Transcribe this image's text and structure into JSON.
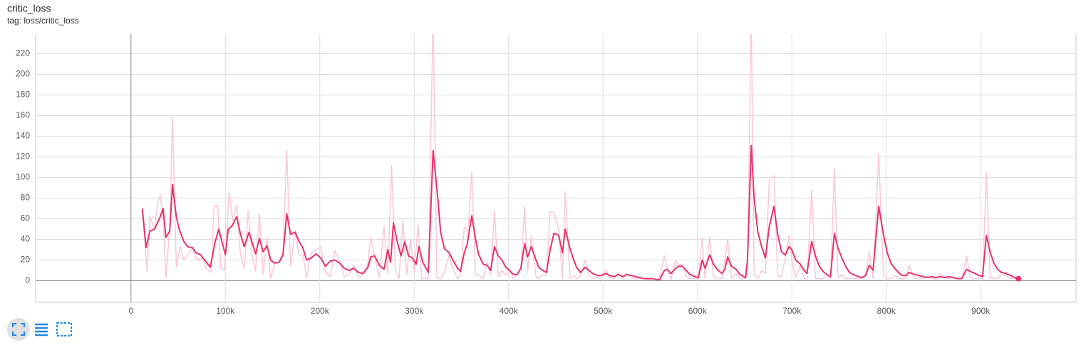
{
  "chart_data": {
    "type": "line",
    "title": "critic_loss",
    "subtitle": "tag: loss/critic_loss",
    "xlim": [
      -101000,
      1001000
    ],
    "ylim": [
      -21,
      239
    ],
    "grid": true,
    "xticks": [
      {
        "value": 0,
        "label": "0"
      },
      {
        "value": 100000,
        "label": "100k"
      },
      {
        "value": 200000,
        "label": "200k"
      },
      {
        "value": 300000,
        "label": "300k"
      },
      {
        "value": 400000,
        "label": "400k"
      },
      {
        "value": 500000,
        "label": "500k"
      },
      {
        "value": 600000,
        "label": "600k"
      },
      {
        "value": 700000,
        "label": "700k"
      },
      {
        "value": 800000,
        "label": "800k"
      },
      {
        "value": 900000,
        "label": "900k"
      }
    ],
    "yticks": [
      0,
      20,
      40,
      60,
      80,
      100,
      120,
      140,
      160,
      180,
      200,
      220
    ],
    "series": [
      {
        "color": "#f9c8d8",
        "x": [
          12000,
          17000,
          20000,
          25000,
          28000,
          31000,
          34000,
          37000,
          41000,
          44000,
          48000,
          52000,
          56000,
          60000,
          65000,
          70000,
          75000,
          80000,
          85000,
          88000,
          92000,
          95000,
          99000,
          104000,
          108000,
          112000,
          116000,
          120000,
          124000,
          128000,
          132000,
          136000,
          140000,
          144000,
          148000,
          152000,
          157000,
          161000,
          165000,
          169000,
          174000,
          178000,
          182000,
          186000,
          191000,
          196000,
          201000,
          206000,
          211000,
          216000,
          221000,
          226000,
          231000,
          236000,
          241000,
          246000,
          251000,
          254000,
          258000,
          263000,
          268000,
          272000,
          276000,
          280000,
          284000,
          288000,
          292000,
          296000,
          300000,
          304000,
          308000,
          315000,
          320000,
          324000,
          328000,
          332000,
          337000,
          341000,
          346000,
          349000,
          353000,
          357000,
          361000,
          365000,
          368000,
          373000,
          377000,
          381000,
          385000,
          389000,
          393000,
          397000,
          401000,
          405000,
          409000,
          413000,
          417000,
          420000,
          424000,
          429000,
          432000,
          436000,
          440000,
          444000,
          448000,
          453000,
          457000,
          460000,
          465000,
          469000,
          472000,
          476000,
          481000,
          485000,
          489000,
          494000,
          498000,
          503000,
          507000,
          512000,
          516000,
          521000,
          525000,
          530000,
          534000,
          539000,
          543000,
          548000,
          552000,
          557000,
          560000,
          565000,
          568000,
          572000,
          577000,
          580000,
          584000,
          588000,
          592000,
          597000,
          601000,
          605000,
          608000,
          613000,
          617000,
          622000,
          626000,
          629000,
          632000,
          636000,
          641000,
          645000,
          651000,
          653000,
          657000,
          660000,
          664000,
          668000,
          672000,
          676000,
          681000,
          685000,
          689000,
          693000,
          697000,
          700000,
          704000,
          709000,
          713000,
          716000,
          721000,
          725000,
          729000,
          733000,
          737000,
          741000,
          745000,
          749000,
          753000,
          757000,
          761000,
          765000,
          770000,
          774000,
          778000,
          782000,
          786000,
          792000,
          797000,
          801000,
          805000,
          809000,
          814000,
          817000,
          821000,
          824000,
          830000,
          835000,
          839000,
          844000,
          848000,
          853000,
          857000,
          862000,
          866000,
          871000,
          875000,
          880000,
          885000,
          889000,
          894000,
          898000,
          902000,
          906000,
          910000,
          914000,
          918000,
          922000,
          927000,
          932000,
          936000,
          940000
        ],
        "values": [
          70,
          9,
          62,
          50,
          75,
          83,
          60,
          3,
          50,
          159,
          13,
          33,
          20,
          25,
          32,
          20,
          22,
          12,
          8,
          72,
          72,
          12,
          10,
          86,
          58,
          73,
          25,
          12,
          68,
          27,
          9,
          65,
          6,
          42,
          2,
          16,
          18,
          30,
          127,
          14,
          48,
          25,
          25,
          3,
          27,
          30,
          33,
          8,
          4,
          29,
          20,
          4,
          6,
          15,
          3,
          7,
          17,
          42,
          24,
          3,
          53,
          7,
          112,
          10,
          2,
          58,
          6,
          40,
          8,
          54,
          2,
          2,
          260,
          3,
          2,
          8,
          25,
          11,
          2,
          5,
          52,
          48,
          106,
          5,
          6,
          2,
          18,
          6,
          68,
          4,
          10,
          5,
          10,
          2,
          6,
          12,
          72,
          8,
          44,
          4,
          2,
          6,
          5,
          67,
          66,
          50,
          2,
          86,
          2,
          5,
          2,
          4,
          20,
          4,
          2,
          3,
          2,
          10,
          3,
          2,
          8,
          2,
          7,
          3,
          2,
          2,
          2,
          1,
          2,
          1,
          3,
          24,
          12,
          1,
          20,
          15,
          16,
          5,
          2,
          2,
          2,
          42,
          2,
          42,
          4,
          2,
          2,
          20,
          40,
          2,
          7,
          2,
          2,
          8,
          260,
          5,
          2,
          10,
          7,
          97,
          102,
          4,
          4,
          22,
          44,
          20,
          3,
          14,
          2,
          2,
          88,
          2,
          2,
          2,
          4,
          2,
          109,
          3,
          6,
          2,
          2,
          2,
          2,
          2,
          5,
          28,
          2,
          123,
          6,
          2,
          2,
          5,
          2,
          2,
          3,
          15,
          2,
          3,
          2,
          4,
          2,
          2,
          7,
          3,
          2,
          3,
          2,
          2,
          24,
          3,
          2,
          2,
          2,
          105,
          3,
          2,
          2,
          6,
          5,
          2,
          2,
          2
        ]
      },
      {
        "color": "#e8336d",
        "x": [
          12000,
          16000,
          20000,
          25000,
          31000,
          34000,
          37000,
          41000,
          44000,
          48000,
          51000,
          56000,
          60000,
          65000,
          69000,
          74000,
          78000,
          84000,
          89000,
          93000,
          100000,
          103000,
          107000,
          112000,
          116000,
          120000,
          125000,
          128000,
          132000,
          136000,
          140000,
          144000,
          148000,
          152000,
          157000,
          161000,
          165000,
          169000,
          174000,
          178000,
          182000,
          186000,
          191000,
          196000,
          201000,
          206000,
          211000,
          216000,
          221000,
          226000,
          231000,
          236000,
          241000,
          246000,
          251000,
          254000,
          258000,
          263000,
          268000,
          272000,
          275000,
          278000,
          282000,
          286000,
          290000,
          294000,
          298000,
          302000,
          305000,
          309000,
          315000,
          320000,
          325000,
          328000,
          332000,
          337000,
          341000,
          346000,
          349000,
          353000,
          356000,
          361000,
          365000,
          368000,
          373000,
          377000,
          381000,
          385000,
          389000,
          393000,
          397000,
          401000,
          405000,
          409000,
          413000,
          417000,
          420000,
          424000,
          429000,
          432000,
          436000,
          440000,
          444000,
          448000,
          453000,
          457000,
          460000,
          465000,
          469000,
          472000,
          476000,
          481000,
          485000,
          489000,
          494000,
          498000,
          503000,
          507000,
          512000,
          516000,
          521000,
          525000,
          530000,
          534000,
          539000,
          543000,
          548000,
          552000,
          557000,
          560000,
          565000,
          568000,
          572000,
          577000,
          580000,
          584000,
          588000,
          592000,
          597000,
          601000,
          605000,
          608000,
          613000,
          617000,
          622000,
          626000,
          629000,
          632000,
          636000,
          641000,
          645000,
          651000,
          653000,
          657000,
          660000,
          664000,
          668000,
          672000,
          676000,
          681000,
          685000,
          689000,
          693000,
          697000,
          700000,
          704000,
          709000,
          713000,
          716000,
          721000,
          725000,
          729000,
          733000,
          737000,
          741000,
          745000,
          749000,
          753000,
          757000,
          761000,
          765000,
          770000,
          774000,
          778000,
          782000,
          786000,
          792000,
          797000,
          801000,
          805000,
          809000,
          814000,
          817000,
          821000,
          824000,
          830000,
          835000,
          839000,
          844000,
          848000,
          853000,
          857000,
          862000,
          866000,
          871000,
          875000,
          880000,
          885000,
          889000,
          894000,
          898000,
          902000,
          906000,
          910000,
          914000,
          918000,
          922000,
          927000,
          932000,
          936000,
          940000
        ],
        "values": [
          70,
          32,
          48,
          50,
          62,
          70,
          42,
          48,
          93,
          62,
          50,
          38,
          33,
          32,
          27,
          25,
          20,
          13,
          37,
          50,
          25,
          50,
          53,
          62,
          45,
          33,
          47,
          38,
          26,
          41,
          28,
          34,
          20,
          17,
          18,
          25,
          65,
          45,
          47,
          38,
          32,
          20,
          22,
          26,
          22,
          14,
          19,
          20,
          17,
          12,
          10,
          12,
          8,
          7,
          13,
          23,
          24,
          15,
          11,
          30,
          18,
          56,
          38,
          24,
          38,
          24,
          22,
          16,
          33,
          18,
          8,
          126,
          80,
          47,
          31,
          27,
          20,
          12,
          9,
          27,
          35,
          63,
          40,
          26,
          16,
          15,
          10,
          33,
          24,
          20,
          13,
          10,
          6,
          6,
          12,
          36,
          23,
          33,
          20,
          13,
          10,
          8,
          30,
          46,
          44,
          27,
          50,
          31,
          20,
          13,
          8,
          13,
          10,
          7,
          5,
          5,
          7,
          5,
          4,
          6,
          4,
          6,
          5,
          4,
          3,
          2,
          2,
          2,
          1,
          1,
          10,
          11,
          7,
          12,
          14,
          14,
          10,
          6,
          4,
          3,
          20,
          12,
          25,
          16,
          10,
          7,
          11,
          23,
          14,
          11,
          6,
          3,
          20,
          131,
          80,
          47,
          33,
          22,
          52,
          72,
          45,
          28,
          25,
          33,
          30,
          20,
          16,
          10,
          7,
          38,
          24,
          14,
          9,
          6,
          4,
          46,
          31,
          22,
          14,
          8,
          6,
          4,
          3,
          5,
          15,
          10,
          72,
          45,
          27,
          17,
          12,
          7,
          5,
          5,
          8,
          6,
          5,
          4,
          3,
          4,
          3,
          4,
          3,
          4,
          3,
          2,
          2,
          11,
          9,
          7,
          5,
          4,
          44,
          28,
          17,
          11,
          8,
          7,
          5,
          3,
          2
        ]
      }
    ]
  }
}
